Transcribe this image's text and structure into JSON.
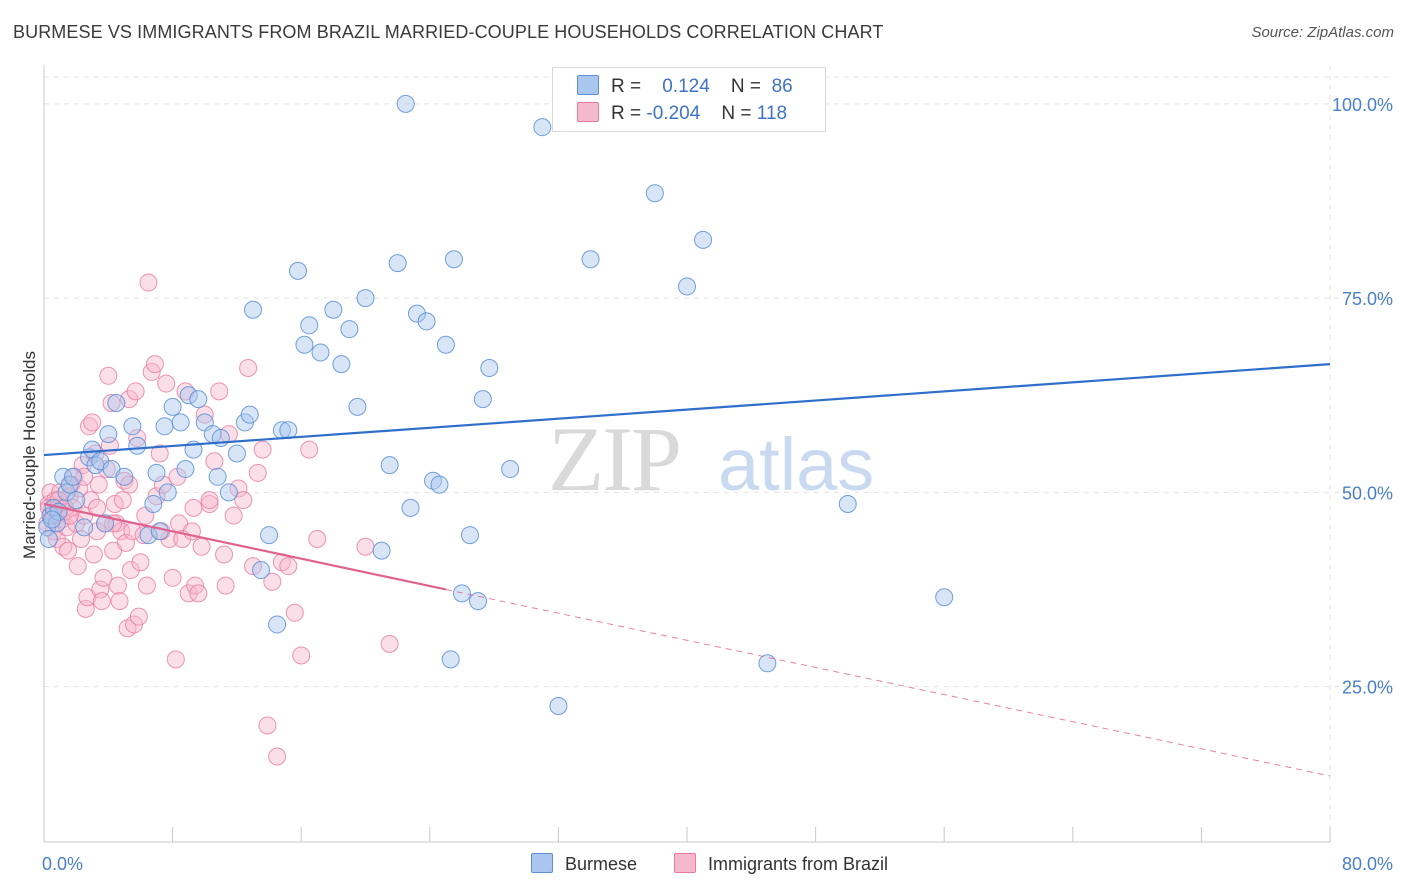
{
  "title": "BURMESE VS IMMIGRANTS FROM BRAZIL MARRIED-COUPLE HOUSEHOLDS CORRELATION CHART",
  "source": "Source: ZipAtlas.com",
  "watermark": {
    "zip": "ZIP",
    "atlas": "atlas"
  },
  "colors": {
    "burmese_fill": "#a9c6ee",
    "burmese_stroke": "#5b8fd6",
    "burmese_line": "#2f6fcb",
    "brazil_fill": "#f6b8cc",
    "brazil_stroke": "#e87aa0",
    "brazil_line": "#e0628f",
    "axis_text": "#4a7fc9",
    "grid": "#e3e3e3"
  },
  "legend": {
    "rows": [
      {
        "r_label": "R =",
        "r_value": "0.124",
        "n_label": "N =",
        "n_value": "86"
      },
      {
        "r_label": "R =",
        "r_value": "-0.204",
        "n_label": "N =",
        "n_value": "118"
      }
    ]
  },
  "bottom_legend": [
    "Burmese",
    "Immigrants from Brazil"
  ],
  "chart_data": {
    "type": "scatter",
    "title": "BURMESE VS IMMIGRANTS FROM BRAZIL MARRIED-COUPLE HOUSEHOLDS CORRELATION CHART",
    "xlabel": "",
    "ylabel": "Married-couple Households",
    "xlim": [
      0,
      80
    ],
    "ylim": [
      5,
      105
    ],
    "x_tick_labels": [
      "0.0%",
      "80.0%"
    ],
    "y_ticks": [
      25,
      50,
      75,
      100
    ],
    "y_tick_labels": [
      "25.0%",
      "50.0%",
      "75.0%",
      "100.0%"
    ],
    "grid": true,
    "legend_placement": "top-center",
    "series": [
      {
        "name": "Burmese",
        "r": 0.124,
        "n": 86,
        "trend": {
          "x": [
            0,
            80
          ],
          "y": [
            54.8,
            66.5
          ]
        },
        "points": [
          [
            0.2,
            45.5
          ],
          [
            0.4,
            47
          ],
          [
            0.6,
            48
          ],
          [
            0.8,
            46
          ],
          [
            0.9,
            47.5
          ],
          [
            1.2,
            52
          ],
          [
            1.4,
            50
          ],
          [
            1.6,
            51
          ],
          [
            1.8,
            52
          ],
          [
            2.0,
            49
          ],
          [
            2.5,
            45.5
          ],
          [
            2.8,
            54.5
          ],
          [
            3.0,
            55.5
          ],
          [
            3.2,
            53.5
          ],
          [
            3.5,
            54
          ],
          [
            4.0,
            57.5
          ],
          [
            4.2,
            53
          ],
          [
            4.5,
            61.5
          ],
          [
            5.0,
            52
          ],
          [
            5.5,
            58.5
          ],
          [
            5.8,
            56
          ],
          [
            6.5,
            44.5
          ],
          [
            6.8,
            48.5
          ],
          [
            7.0,
            52.5
          ],
          [
            7.5,
            58.5
          ],
          [
            7.7,
            50
          ],
          [
            8.0,
            61
          ],
          [
            8.5,
            59
          ],
          [
            8.8,
            53
          ],
          [
            9.0,
            62.5
          ],
          [
            9.3,
            55.5
          ],
          [
            9.6,
            62
          ],
          [
            10.0,
            59
          ],
          [
            10.5,
            57.5
          ],
          [
            11.0,
            57
          ],
          [
            11.5,
            50
          ],
          [
            12.0,
            55
          ],
          [
            12.5,
            59
          ],
          [
            12.8,
            60
          ],
          [
            13.0,
            73.5
          ],
          [
            13.5,
            40
          ],
          [
            14.0,
            44.5
          ],
          [
            14.5,
            33
          ],
          [
            14.8,
            58
          ],
          [
            15.2,
            58
          ],
          [
            15.8,
            78.5
          ],
          [
            16.2,
            69
          ],
          [
            16.5,
            71.5
          ],
          [
            17.2,
            68
          ],
          [
            18.0,
            73.5
          ],
          [
            18.5,
            66.5
          ],
          [
            19.0,
            71
          ],
          [
            19.5,
            61
          ],
          [
            20.0,
            75
          ],
          [
            21.0,
            42.5
          ],
          [
            21.5,
            53.5
          ],
          [
            22.0,
            79.5
          ],
          [
            22.8,
            48
          ],
          [
            23.2,
            73
          ],
          [
            23.8,
            72
          ],
          [
            24.2,
            51.5
          ],
          [
            24.6,
            51
          ],
          [
            25.0,
            69
          ],
          [
            25.3,
            28.5
          ],
          [
            25.5,
            80
          ],
          [
            26.0,
            37
          ],
          [
            26.5,
            44.5
          ],
          [
            27.0,
            36
          ],
          [
            27.3,
            62
          ],
          [
            27.7,
            66
          ],
          [
            29.0,
            53
          ],
          [
            31.0,
            97
          ],
          [
            32.0,
            22.5
          ],
          [
            34.0,
            80
          ],
          [
            38.0,
            88.5
          ],
          [
            40.0,
            76.5
          ],
          [
            41.0,
            82.5
          ],
          [
            45.0,
            28
          ],
          [
            50.0,
            48.5
          ],
          [
            56.0,
            36.5
          ],
          [
            22.5,
            100
          ],
          [
            0.3,
            44
          ],
          [
            0.5,
            46.5
          ],
          [
            3.8,
            46
          ],
          [
            7.2,
            45
          ],
          [
            10.8,
            52
          ]
        ]
      },
      {
        "name": "Immigrants from Brazil",
        "r": -0.204,
        "n": 118,
        "trend": {
          "x": [
            0,
            25
          ],
          "y": [
            48.5,
            37.5
          ]
        },
        "trend_extension": {
          "x": [
            25,
            80
          ],
          "y": [
            37.5,
            13.5
          ]
        },
        "points": [
          [
            0.2,
            46
          ],
          [
            0.3,
            48.5
          ],
          [
            0.4,
            50
          ],
          [
            0.5,
            47
          ],
          [
            0.6,
            45
          ],
          [
            0.7,
            49
          ],
          [
            0.8,
            44
          ],
          [
            0.9,
            48
          ],
          [
            1.0,
            50
          ],
          [
            1.1,
            46.5
          ],
          [
            1.2,
            43
          ],
          [
            1.3,
            47.5
          ],
          [
            1.4,
            45.5
          ],
          [
            1.5,
            42.5
          ],
          [
            1.6,
            49.5
          ],
          [
            1.7,
            51
          ],
          [
            1.8,
            48
          ],
          [
            1.9,
            52
          ],
          [
            2.0,
            46
          ],
          [
            2.1,
            40.5
          ],
          [
            2.2,
            50.5
          ],
          [
            2.3,
            44
          ],
          [
            2.4,
            53.5
          ],
          [
            2.5,
            47
          ],
          [
            2.6,
            35
          ],
          [
            2.7,
            36.5
          ],
          [
            2.8,
            58.5
          ],
          [
            2.9,
            49
          ],
          [
            3.0,
            59
          ],
          [
            3.1,
            42
          ],
          [
            3.2,
            55
          ],
          [
            3.3,
            45
          ],
          [
            3.4,
            51
          ],
          [
            3.5,
            37.5
          ],
          [
            3.6,
            36
          ],
          [
            3.7,
            39
          ],
          [
            3.8,
            46
          ],
          [
            3.9,
            53
          ],
          [
            4.0,
            65
          ],
          [
            4.1,
            56
          ],
          [
            4.2,
            61.5
          ],
          [
            4.3,
            42.5
          ],
          [
            4.4,
            48.5
          ],
          [
            4.5,
            46
          ],
          [
            4.6,
            38
          ],
          [
            4.7,
            36
          ],
          [
            4.8,
            45
          ],
          [
            4.9,
            49
          ],
          [
            5.0,
            51.5
          ],
          [
            5.1,
            43.5
          ],
          [
            5.2,
            32.5
          ],
          [
            5.3,
            62
          ],
          [
            5.4,
            40
          ],
          [
            5.5,
            45
          ],
          [
            5.6,
            33
          ],
          [
            5.7,
            63
          ],
          [
            5.8,
            57
          ],
          [
            5.9,
            34
          ],
          [
            6.0,
            41
          ],
          [
            6.2,
            44.5
          ],
          [
            6.4,
            38
          ],
          [
            6.5,
            77
          ],
          [
            6.7,
            65.5
          ],
          [
            6.9,
            66.5
          ],
          [
            7.0,
            49.5
          ],
          [
            7.2,
            55
          ],
          [
            7.4,
            51
          ],
          [
            7.6,
            64
          ],
          [
            7.8,
            44
          ],
          [
            8.0,
            39
          ],
          [
            8.2,
            28.5
          ],
          [
            8.4,
            46
          ],
          [
            8.6,
            44
          ],
          [
            8.8,
            63
          ],
          [
            9.0,
            37
          ],
          [
            9.2,
            45
          ],
          [
            9.4,
            38
          ],
          [
            9.6,
            37
          ],
          [
            9.8,
            43
          ],
          [
            10.0,
            60
          ],
          [
            10.3,
            48.5
          ],
          [
            10.6,
            54
          ],
          [
            10.9,
            63
          ],
          [
            11.2,
            42
          ],
          [
            11.5,
            57.5
          ],
          [
            11.8,
            47
          ],
          [
            12.1,
            50.5
          ],
          [
            12.4,
            49
          ],
          [
            12.7,
            66
          ],
          [
            13.0,
            40.5
          ],
          [
            13.3,
            52.5
          ],
          [
            13.6,
            55.5
          ],
          [
            13.9,
            20
          ],
          [
            14.2,
            38.5
          ],
          [
            14.5,
            16
          ],
          [
            14.8,
            41
          ],
          [
            15.2,
            40.5
          ],
          [
            15.6,
            34.5
          ],
          [
            16.0,
            29
          ],
          [
            16.5,
            55.5
          ],
          [
            17.0,
            44
          ],
          [
            0.3,
            48
          ],
          [
            0.6,
            47
          ],
          [
            0.9,
            49
          ],
          [
            1.3,
            48
          ],
          [
            1.6,
            47
          ],
          [
            2.5,
            52
          ],
          [
            3.3,
            48
          ],
          [
            4.3,
            46
          ],
          [
            5.3,
            51
          ],
          [
            6.3,
            47
          ],
          [
            7.3,
            45
          ],
          [
            8.3,
            52
          ],
          [
            9.3,
            48
          ],
          [
            10.3,
            49
          ],
          [
            11.3,
            38
          ],
          [
            20.0,
            43
          ],
          [
            21.5,
            30.5
          ]
        ]
      }
    ]
  }
}
